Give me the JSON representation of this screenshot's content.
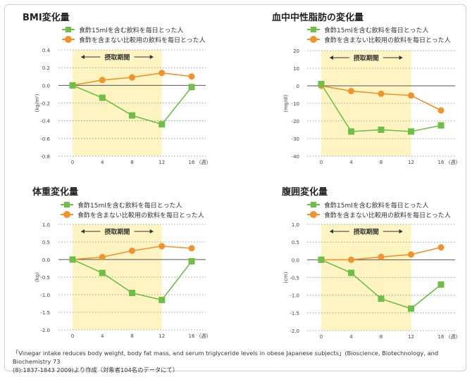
{
  "legend": {
    "series_a": "食酢15mlを含む飲料を毎日とった人",
    "series_b": "食酢を含まない比較用の飲料を毎日とった人"
  },
  "colors": {
    "series_a": "#6dbf45",
    "series_b": "#f2922a",
    "period": "#fdf4c1"
  },
  "footnote": {
    "line1": "「Vinegar intake reduces body weight, body fat mass, and serum triglyceride levels in obese Japanese subjects」(Bioscience, Biotechnology, and Biochemistry 73",
    "line2": "(8):1837-1843 2009)より作成（対象者104名のデータにて）"
  },
  "chart_data": [
    {
      "type": "line",
      "title": "BMI変化量",
      "ylabel": "(kg/m²)",
      "xlabel": "(週)",
      "x": [
        0,
        4,
        8,
        12,
        16
      ],
      "x_tick_labels": [
        "0",
        "4",
        "8",
        "12",
        "16"
      ],
      "ylim": [
        -0.8,
        0.4
      ],
      "yticks": [
        0.4,
        0.2,
        0.0,
        -0.2,
        -0.4,
        -0.6,
        -0.8
      ],
      "ytick_labels": [
        "0.4",
        "0.2",
        "0.0",
        "-0.2",
        "-0.4",
        "-0.6",
        "-0.8"
      ],
      "period_label": "摂取期間",
      "period_range": [
        0,
        12
      ],
      "series": [
        {
          "name": "食酢15mlを含む飲料を毎日とった人",
          "values": [
            0.0,
            -0.14,
            -0.34,
            -0.44,
            -0.02
          ]
        },
        {
          "name": "食酢を含まない比較用の飲料を毎日とった人",
          "values": [
            0.0,
            0.06,
            0.09,
            0.14,
            0.1
          ]
        }
      ]
    },
    {
      "type": "line",
      "title": "血中中性脂肪の変化量",
      "ylabel": "(mg/dl)",
      "xlabel": "(週)",
      "x": [
        0,
        4,
        8,
        12,
        16
      ],
      "x_tick_labels": [
        "0",
        "4",
        "8",
        "12",
        "16"
      ],
      "ylim": [
        -40,
        20
      ],
      "yticks": [
        20,
        10,
        0,
        -10,
        -20,
        -30,
        -40
      ],
      "ytick_labels": [
        "20",
        "10",
        "0",
        "-10",
        "-20",
        "-30",
        "-40"
      ],
      "period_label": "摂取期間",
      "period_range": [
        0,
        12
      ],
      "series": [
        {
          "name": "食酢15mlを含む飲料を毎日とった人",
          "values": [
            1,
            -26,
            -25,
            -26,
            -22.5
          ]
        },
        {
          "name": "食酢を含まない比較用の飲料を毎日とった人",
          "values": [
            0,
            -3,
            -4.5,
            -5.5,
            -14
          ]
        }
      ]
    },
    {
      "type": "line",
      "title": "体重変化量",
      "ylabel": "(kg)",
      "xlabel": "(週)",
      "x": [
        0,
        4,
        8,
        12,
        16
      ],
      "x_tick_labels": [
        "0",
        "4",
        "8",
        "12",
        "16"
      ],
      "ylim": [
        -2.0,
        1.0
      ],
      "yticks": [
        1.0,
        0.5,
        0.0,
        -0.5,
        -1.0,
        -1.5,
        -2.0
      ],
      "ytick_labels": [
        "1.0",
        "0.5",
        "0.0",
        "-0.5",
        "-1.0",
        "-1.5",
        "-2.0"
      ],
      "period_label": "摂取期間",
      "period_range": [
        0,
        12
      ],
      "series": [
        {
          "name": "食酢15mlを含む飲料を毎日とった人",
          "values": [
            0.0,
            -0.38,
            -0.95,
            -1.15,
            -0.05
          ]
        },
        {
          "name": "食酢を含まない比較用の飲料を毎日とった人",
          "values": [
            0.0,
            0.07,
            0.25,
            0.38,
            0.32
          ]
        }
      ]
    },
    {
      "type": "line",
      "title": "腹囲変化量",
      "ylabel": "(cm)",
      "xlabel": "(週)",
      "x": [
        0,
        4,
        8,
        12,
        16
      ],
      "x_tick_labels": [
        "0",
        "4",
        "8",
        "12",
        "16"
      ],
      "ylim": [
        -2.0,
        1.0
      ],
      "yticks": [
        1.0,
        0.5,
        0.0,
        -0.5,
        -1.0,
        -1.5,
        -2.0
      ],
      "ytick_labels": [
        "1.0",
        "0.5",
        "0.0",
        "-0.5",
        "-1.0",
        "-1.5",
        "-2.0"
      ],
      "period_label": "摂取期間",
      "period_range": [
        0,
        12
      ],
      "series": [
        {
          "name": "食酢15mlを含む飲料を毎日とった人",
          "values": [
            0.0,
            -0.37,
            -1.1,
            -1.38,
            -0.7
          ]
        },
        {
          "name": "食酢を含まない比較用の飲料を毎日とった人",
          "values": [
            0.0,
            0.0,
            0.08,
            0.15,
            0.35
          ]
        }
      ]
    }
  ]
}
